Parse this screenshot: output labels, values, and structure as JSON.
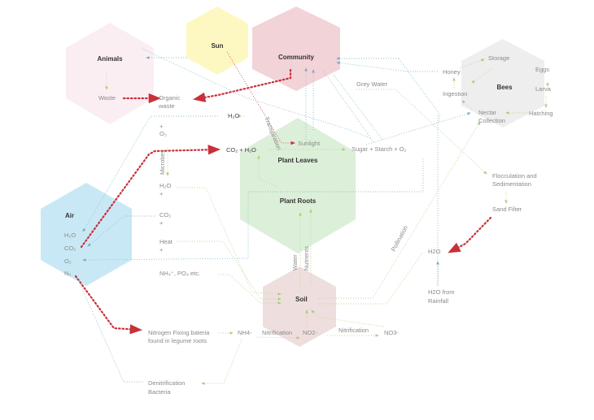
{
  "colors": {
    "animals": "#fbeef3",
    "sun": "#fdf8c2",
    "community": "#f2d3d8",
    "bees": "#eeeeee",
    "plant": "#dcefd9",
    "air": "#c9e8f5",
    "soil": "#efdede",
    "red_flow": "#c8303a",
    "blue_flow": "#8fbfcf",
    "green_flow": "#bcd899"
  },
  "nodes": {
    "animals": "Animals",
    "sun": "Sun",
    "community": "Community",
    "bees": "Bees",
    "plant_leaves": "Plant Leaves",
    "plant_roots": "Plant Roots",
    "air": "Air",
    "soil": "Soil"
  },
  "labels": {
    "waste": "Waste",
    "organic_waste": [
      "Organic",
      "waste"
    ],
    "grey_water": "Grey Water",
    "honey": "Honey",
    "storage": "Storage",
    "eggs": "Eggs",
    "larva": "Larva",
    "ingestion": "Ingestion",
    "nectar_collection": [
      "Nectar",
      "Collection"
    ],
    "hatching": "Hatching",
    "h2o_top": "H₂O",
    "plus_o2": [
      "+",
      "O₂"
    ],
    "microbes": "Microbes",
    "co2_h2o": "CO₂ + H₂O",
    "sunlight": "Sunlight",
    "sugar": "Sugar + Starch + O₂",
    "transpiration": "Transpiration",
    "h2o_plus": [
      "H₂O",
      "+"
    ],
    "co2_plus": [
      "CO₂",
      "+"
    ],
    "heat_plus": [
      "Heat",
      "+"
    ],
    "nh4_po4": "NH₄⁺, PO₄ etc.",
    "air_items": [
      "H₂O",
      "CO₂",
      "O₂",
      "N₂"
    ],
    "water": "Water",
    "nutrients": "Nutrients",
    "pollination": "Pollination",
    "flocculation": [
      "Flocculation and",
      "Sedimentation"
    ],
    "sand_filter": "Sand Filter",
    "h2o_right": "H2O",
    "h2o_rainfall": [
      "H2O from",
      "Rainfall"
    ],
    "nitrogen_fixing": [
      "Nitrogen Fixing bateria",
      "found in legume roots"
    ],
    "nh4": "NH4-",
    "nitrification_1": "Nitrification",
    "no2": "NO2-",
    "nitrification_2": "Nitrification",
    "no3": "NO3-",
    "denitrification": [
      "Denitrification",
      "Bacteria"
    ]
  }
}
